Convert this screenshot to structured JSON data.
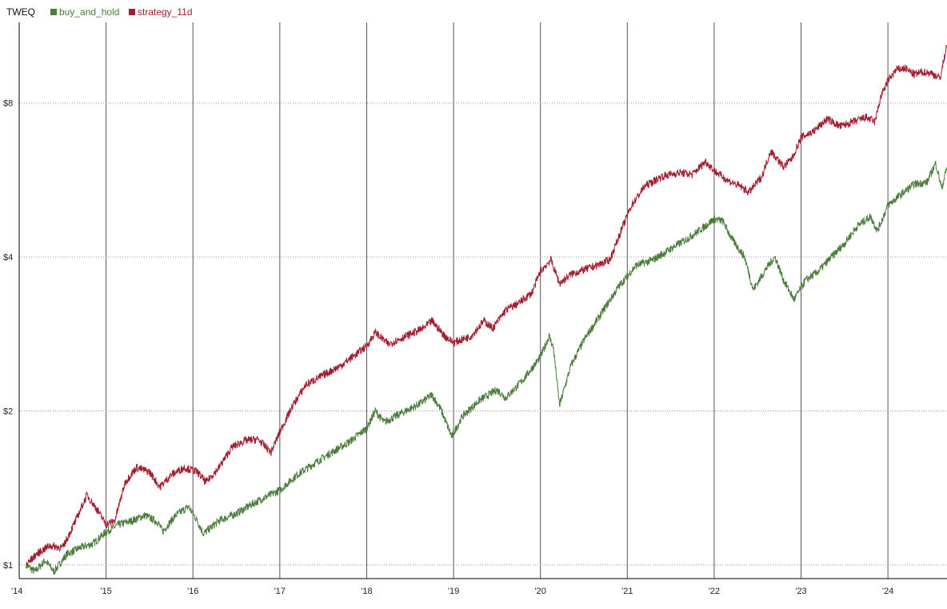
{
  "chart_data": {
    "type": "line",
    "title": "TWEQ",
    "xlabel": "",
    "ylabel": "",
    "y_scale": "log",
    "ylim": [
      0.94,
      11.5
    ],
    "xlim": [
      2014.0,
      2024.68
    ],
    "grid": {
      "horizontal": "dotted",
      "vertical": "solid-at-year-ticks"
    },
    "legend_position": "top-left",
    "x_ticks": [
      {
        "value": 2014,
        "label": "'14"
      },
      {
        "value": 2015,
        "label": "'15"
      },
      {
        "value": 2016,
        "label": "'16"
      },
      {
        "value": 2017,
        "label": "'17"
      },
      {
        "value": 2018,
        "label": "'18"
      },
      {
        "value": 2019,
        "label": "'19"
      },
      {
        "value": 2020,
        "label": "'20"
      },
      {
        "value": 2021,
        "label": "'21"
      },
      {
        "value": 2022,
        "label": "'22"
      },
      {
        "value": 2023,
        "label": "'23"
      },
      {
        "value": 2024,
        "label": "'24"
      }
    ],
    "y_ticks": [
      {
        "value": 1,
        "label": "$1"
      },
      {
        "value": 2,
        "label": "$2"
      },
      {
        "value": 4,
        "label": "$4"
      },
      {
        "value": 8,
        "label": "$8"
      }
    ],
    "series": [
      {
        "name": "buy_and_hold",
        "color": "#4a7c3a",
        "points": [
          [
            2014.08,
            1.0
          ],
          [
            2014.18,
            0.97
          ],
          [
            2014.3,
            1.02
          ],
          [
            2014.4,
            0.97
          ],
          [
            2014.55,
            1.05
          ],
          [
            2014.7,
            1.08
          ],
          [
            2014.85,
            1.1
          ],
          [
            2015.0,
            1.16
          ],
          [
            2015.15,
            1.2
          ],
          [
            2015.3,
            1.22
          ],
          [
            2015.45,
            1.25
          ],
          [
            2015.6,
            1.21
          ],
          [
            2015.65,
            1.16
          ],
          [
            2015.8,
            1.25
          ],
          [
            2015.95,
            1.3
          ],
          [
            2016.05,
            1.22
          ],
          [
            2016.12,
            1.15
          ],
          [
            2016.3,
            1.22
          ],
          [
            2016.5,
            1.26
          ],
          [
            2016.7,
            1.32
          ],
          [
            2016.85,
            1.36
          ],
          [
            2017.0,
            1.4
          ],
          [
            2017.2,
            1.5
          ],
          [
            2017.4,
            1.58
          ],
          [
            2017.6,
            1.66
          ],
          [
            2017.8,
            1.74
          ],
          [
            2018.0,
            1.85
          ],
          [
            2018.1,
            2.0
          ],
          [
            2018.2,
            1.9
          ],
          [
            2018.4,
            1.98
          ],
          [
            2018.6,
            2.06
          ],
          [
            2018.75,
            2.15
          ],
          [
            2018.85,
            2.02
          ],
          [
            2018.98,
            1.78
          ],
          [
            2019.1,
            1.95
          ],
          [
            2019.3,
            2.1
          ],
          [
            2019.5,
            2.2
          ],
          [
            2019.6,
            2.12
          ],
          [
            2019.8,
            2.3
          ],
          [
            2020.0,
            2.55
          ],
          [
            2020.1,
            2.8
          ],
          [
            2020.15,
            2.65
          ],
          [
            2020.22,
            2.05
          ],
          [
            2020.35,
            2.45
          ],
          [
            2020.5,
            2.75
          ],
          [
            2020.7,
            3.1
          ],
          [
            2020.9,
            3.5
          ],
          [
            2021.1,
            3.85
          ],
          [
            2021.3,
            3.95
          ],
          [
            2021.5,
            4.15
          ],
          [
            2021.7,
            4.35
          ],
          [
            2021.9,
            4.6
          ],
          [
            2022.0,
            4.75
          ],
          [
            2022.1,
            4.7
          ],
          [
            2022.2,
            4.35
          ],
          [
            2022.35,
            4.0
          ],
          [
            2022.45,
            3.45
          ],
          [
            2022.6,
            3.8
          ],
          [
            2022.7,
            4.0
          ],
          [
            2022.8,
            3.6
          ],
          [
            2022.92,
            3.3
          ],
          [
            2023.05,
            3.6
          ],
          [
            2023.2,
            3.75
          ],
          [
            2023.35,
            4.0
          ],
          [
            2023.5,
            4.25
          ],
          [
            2023.65,
            4.6
          ],
          [
            2023.8,
            4.8
          ],
          [
            2023.88,
            4.5
          ],
          [
            2024.0,
            5.05
          ],
          [
            2024.15,
            5.3
          ],
          [
            2024.3,
            5.55
          ],
          [
            2024.45,
            5.6
          ],
          [
            2024.55,
            6.1
          ],
          [
            2024.62,
            5.45
          ],
          [
            2024.68,
            6.0
          ]
        ]
      },
      {
        "name": "strategy_11d",
        "color": "#a11d2f",
        "points": [
          [
            2014.08,
            1.0
          ],
          [
            2014.2,
            1.05
          ],
          [
            2014.35,
            1.09
          ],
          [
            2014.5,
            1.08
          ],
          [
            2014.65,
            1.22
          ],
          [
            2014.78,
            1.37
          ],
          [
            2014.9,
            1.28
          ],
          [
            2015.0,
            1.2
          ],
          [
            2015.1,
            1.22
          ],
          [
            2015.22,
            1.45
          ],
          [
            2015.35,
            1.55
          ],
          [
            2015.5,
            1.52
          ],
          [
            2015.62,
            1.42
          ],
          [
            2015.75,
            1.5
          ],
          [
            2015.9,
            1.55
          ],
          [
            2016.05,
            1.52
          ],
          [
            2016.15,
            1.45
          ],
          [
            2016.3,
            1.55
          ],
          [
            2016.45,
            1.7
          ],
          [
            2016.6,
            1.75
          ],
          [
            2016.75,
            1.76
          ],
          [
            2016.9,
            1.66
          ],
          [
            2017.0,
            1.82
          ],
          [
            2017.15,
            2.05
          ],
          [
            2017.3,
            2.25
          ],
          [
            2017.5,
            2.35
          ],
          [
            2017.7,
            2.45
          ],
          [
            2017.9,
            2.6
          ],
          [
            2018.0,
            2.68
          ],
          [
            2018.1,
            2.85
          ],
          [
            2018.25,
            2.7
          ],
          [
            2018.45,
            2.8
          ],
          [
            2018.65,
            2.9
          ],
          [
            2018.75,
            3.0
          ],
          [
            2018.9,
            2.8
          ],
          [
            2019.0,
            2.72
          ],
          [
            2019.2,
            2.8
          ],
          [
            2019.35,
            3.0
          ],
          [
            2019.45,
            2.9
          ],
          [
            2019.6,
            3.15
          ],
          [
            2019.75,
            3.25
          ],
          [
            2019.9,
            3.4
          ],
          [
            2020.0,
            3.75
          ],
          [
            2020.12,
            3.95
          ],
          [
            2020.22,
            3.55
          ],
          [
            2020.35,
            3.7
          ],
          [
            2020.55,
            3.8
          ],
          [
            2020.65,
            3.85
          ],
          [
            2020.8,
            3.95
          ],
          [
            2020.95,
            4.6
          ],
          [
            2021.05,
            5.05
          ],
          [
            2021.2,
            5.5
          ],
          [
            2021.4,
            5.75
          ],
          [
            2021.6,
            5.85
          ],
          [
            2021.75,
            5.8
          ],
          [
            2021.9,
            6.15
          ],
          [
            2022.0,
            5.9
          ],
          [
            2022.15,
            5.65
          ],
          [
            2022.3,
            5.5
          ],
          [
            2022.4,
            5.35
          ],
          [
            2022.55,
            5.75
          ],
          [
            2022.65,
            6.45
          ],
          [
            2022.8,
            6.0
          ],
          [
            2022.9,
            6.25
          ],
          [
            2023.0,
            6.85
          ],
          [
            2023.15,
            7.05
          ],
          [
            2023.3,
            7.45
          ],
          [
            2023.45,
            7.2
          ],
          [
            2023.6,
            7.35
          ],
          [
            2023.75,
            7.5
          ],
          [
            2023.85,
            7.35
          ],
          [
            2023.92,
            8.25
          ],
          [
            2024.0,
            8.85
          ],
          [
            2024.1,
            9.3
          ],
          [
            2024.2,
            9.35
          ],
          [
            2024.3,
            9.1
          ],
          [
            2024.4,
            9.2
          ],
          [
            2024.5,
            9.15
          ],
          [
            2024.6,
            8.95
          ],
          [
            2024.68,
            10.4
          ]
        ]
      }
    ]
  }
}
